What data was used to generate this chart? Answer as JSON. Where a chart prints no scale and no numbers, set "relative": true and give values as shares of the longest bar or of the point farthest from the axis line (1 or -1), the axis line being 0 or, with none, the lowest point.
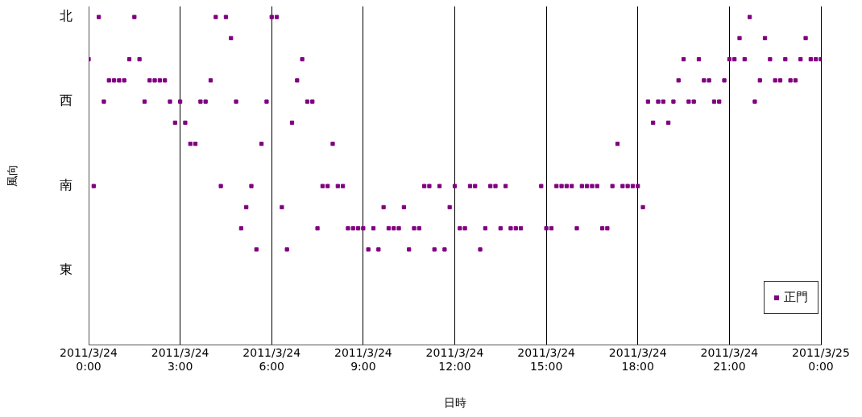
{
  "chart_data": {
    "type": "scatter",
    "xlabel": "日時",
    "ylabel": "風向",
    "legend": "bottom right",
    "marker": "square",
    "grid": "x",
    "relative": true,
    "annotations": [
      "北",
      "西",
      "南",
      "東"
    ],
    "xlim": [
      "2011-03-24T00:00",
      "2011-03-25T00:00"
    ],
    "xticks": [
      {
        "value": "2011-03-24T00:00",
        "label": "2011/3/24\n0:00"
      },
      {
        "value": "2011-03-24T03:00",
        "label": "2011/3/24\n3:00"
      },
      {
        "value": "2011-03-24T06:00",
        "label": "2011/3/24\n6:00"
      },
      {
        "value": "2011-03-24T09:00",
        "label": "2011/3/24\n9:00"
      },
      {
        "value": "2011-03-24T12:00",
        "label": "2011/3/24\n12:00"
      },
      {
        "value": "2011-03-24T15:00",
        "label": "2011/3/24\n15:00"
      },
      {
        "value": "2011-03-24T18:00",
        "label": "2011/3/24\n18:00"
      },
      {
        "value": "2011-03-24T21:00",
        "label": "2011/3/24\n21:00"
      },
      {
        "value": "2011-03-25T00:00",
        "label": "2011/3/25\n0:00"
      }
    ],
    "series": [
      {
        "name": "正門",
        "color": "#800080",
        "x": [
          "2011-03-24T00:00",
          "2011-03-24T00:10",
          "2011-03-24T00:20",
          "2011-03-24T00:30",
          "2011-03-24T00:40",
          "2011-03-24T00:50",
          "2011-03-24T01:00",
          "2011-03-24T01:10",
          "2011-03-24T01:20",
          "2011-03-24T01:30",
          "2011-03-24T01:40",
          "2011-03-24T01:50",
          "2011-03-24T02:00",
          "2011-03-24T02:10",
          "2011-03-24T02:20",
          "2011-03-24T02:30",
          "2011-03-24T02:40",
          "2011-03-24T02:50",
          "2011-03-24T03:00",
          "2011-03-24T03:10",
          "2011-03-24T03:20",
          "2011-03-24T03:30",
          "2011-03-24T03:40",
          "2011-03-24T03:50",
          "2011-03-24T04:00",
          "2011-03-24T04:10",
          "2011-03-24T04:20",
          "2011-03-24T04:30",
          "2011-03-24T04:40",
          "2011-03-24T04:50",
          "2011-03-24T05:00",
          "2011-03-24T05:10",
          "2011-03-24T05:20",
          "2011-03-24T05:30",
          "2011-03-24T05:40",
          "2011-03-24T05:50",
          "2011-03-24T06:00",
          "2011-03-24T06:10",
          "2011-03-24T06:20",
          "2011-03-24T06:30",
          "2011-03-24T06:40",
          "2011-03-24T06:50",
          "2011-03-24T07:00",
          "2011-03-24T07:10",
          "2011-03-24T07:20",
          "2011-03-24T07:30",
          "2011-03-24T07:40",
          "2011-03-24T07:50",
          "2011-03-24T08:00",
          "2011-03-24T08:10",
          "2011-03-24T08:20",
          "2011-03-24T08:30",
          "2011-03-24T08:40",
          "2011-03-24T08:50",
          "2011-03-24T09:00",
          "2011-03-24T09:10",
          "2011-03-24T09:20",
          "2011-03-24T09:30",
          "2011-03-24T09:40",
          "2011-03-24T09:50",
          "2011-03-24T10:00",
          "2011-03-24T10:10",
          "2011-03-24T10:20",
          "2011-03-24T10:30",
          "2011-03-24T10:40",
          "2011-03-24T10:50",
          "2011-03-24T11:00",
          "2011-03-24T11:10",
          "2011-03-24T11:20",
          "2011-03-24T11:30",
          "2011-03-24T11:40",
          "2011-03-24T11:50",
          "2011-03-24T12:00",
          "2011-03-24T12:10",
          "2011-03-24T12:20",
          "2011-03-24T12:30",
          "2011-03-24T12:40",
          "2011-03-24T12:50",
          "2011-03-24T13:00",
          "2011-03-24T13:10",
          "2011-03-24T13:20",
          "2011-03-24T13:30",
          "2011-03-24T13:40",
          "2011-03-24T13:50",
          "2011-03-24T14:00",
          "2011-03-24T14:10",
          "2011-03-24T14:50",
          "2011-03-24T15:00",
          "2011-03-24T15:10",
          "2011-03-24T15:20",
          "2011-03-24T15:30",
          "2011-03-24T15:40",
          "2011-03-24T15:50",
          "2011-03-24T16:00",
          "2011-03-24T16:10",
          "2011-03-24T16:20",
          "2011-03-24T16:30",
          "2011-03-24T16:40",
          "2011-03-24T16:50",
          "2011-03-24T17:00",
          "2011-03-24T17:10",
          "2011-03-24T17:20",
          "2011-03-24T17:30",
          "2011-03-24T17:40",
          "2011-03-24T17:50",
          "2011-03-24T18:00",
          "2011-03-24T18:10",
          "2011-03-24T18:20",
          "2011-03-24T18:30",
          "2011-03-24T18:40",
          "2011-03-24T18:50",
          "2011-03-24T19:00",
          "2011-03-24T19:10",
          "2011-03-24T19:20",
          "2011-03-24T19:30",
          "2011-03-24T19:40",
          "2011-03-24T19:50",
          "2011-03-24T20:00",
          "2011-03-24T20:10",
          "2011-03-24T20:20",
          "2011-03-24T20:30",
          "2011-03-24T20:40",
          "2011-03-24T20:50",
          "2011-03-24T21:00",
          "2011-03-24T21:10",
          "2011-03-24T21:20",
          "2011-03-24T21:30",
          "2011-03-24T21:40",
          "2011-03-24T21:50",
          "2011-03-24T22:00",
          "2011-03-24T22:10",
          "2011-03-24T22:20",
          "2011-03-24T22:30",
          "2011-03-24T22:40",
          "2011-03-24T22:50",
          "2011-03-24T23:00",
          "2011-03-24T23:10",
          "2011-03-24T23:20",
          "2011-03-24T23:30",
          "2011-03-24T23:40",
          "2011-03-24T23:50",
          "2011-03-25T00:00"
        ],
        "values": [
          0.871,
          0.4839,
          1,
          0.7419,
          0.8065,
          0.8065,
          0.8065,
          0.8065,
          0.871,
          1,
          0.871,
          0.7419,
          0.8065,
          0.8065,
          0.8065,
          0.8065,
          0.7419,
          0.6774,
          0.7419,
          0.6774,
          0.6129,
          0.6129,
          0.7419,
          0.7419,
          0.8065,
          1,
          0.4839,
          1,
          0.9355,
          0.7419,
          0.3548,
          0.4194,
          0.4839,
          0.2903,
          0.6129,
          0.7419,
          1,
          1,
          0.4194,
          0.2903,
          0.6774,
          0.8065,
          0.871,
          0.7419,
          0.7419,
          0.3548,
          0.4839,
          0.4839,
          0.6129,
          0.4839,
          0.4839,
          0.3548,
          0.3548,
          0.3548,
          0.3548,
          0.2903,
          0.3548,
          0.2903,
          0.4194,
          0.3548,
          0.3548,
          0.3548,
          0.4194,
          0.2903,
          0.3548,
          0.3548,
          0.4839,
          0.4839,
          0.2903,
          0.4839,
          0.2903,
          0.4194,
          0.4839,
          0.3548,
          0.3548,
          0.4839,
          0.4839,
          0.2903,
          0.3548,
          0.4839,
          0.4839,
          0.3548,
          0.4839,
          0.3548,
          0.3548,
          0.3548,
          0.4839,
          0.3548,
          0.3548,
          0.4839,
          0.4839,
          0.4839,
          0.4839,
          0.3548,
          0.4839,
          0.4839,
          0.4839,
          0.4839,
          0.3548,
          0.3548,
          0.4839,
          0.6129,
          0.4839,
          0.4839,
          0.4839,
          0.4839,
          0.4194,
          0.7419,
          0.6774,
          0.7419,
          0.7419,
          0.6774,
          0.7419,
          0.8065,
          0.871,
          0.7419,
          0.7419,
          0.871,
          0.8065,
          0.8065,
          0.7419,
          0.7419,
          0.8065,
          0.871,
          0.871,
          0.9355,
          0.871,
          1,
          0.7419,
          0.8065,
          0.9355,
          0.871,
          0.8065,
          0.8065,
          0.871,
          0.8065,
          0.8065,
          0.871,
          0.9355,
          0.871,
          0.871,
          0.871
        ]
      }
    ]
  }
}
